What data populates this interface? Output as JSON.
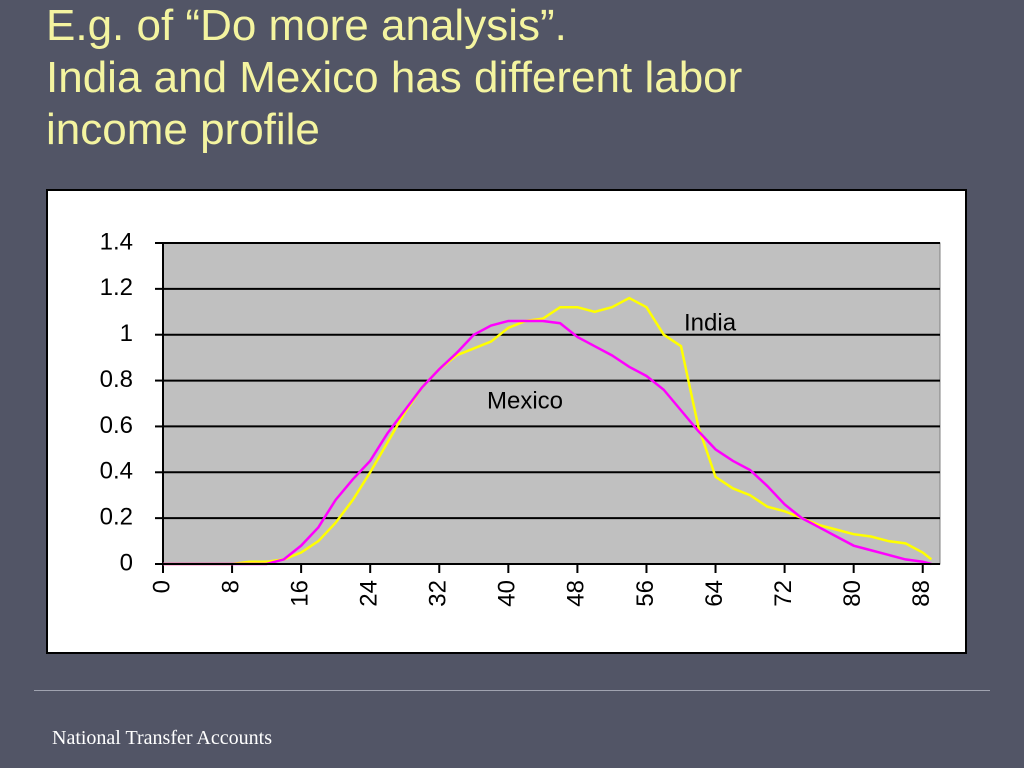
{
  "slide": {
    "title_lines": [
      "E.g. of “Do more analysis”.",
      "India and Mexico has different labor",
      "income profile"
    ],
    "footer": "National Transfer Accounts"
  },
  "chart_data": {
    "type": "line",
    "x": [
      0,
      2,
      4,
      6,
      8,
      10,
      12,
      14,
      16,
      18,
      20,
      22,
      24,
      26,
      28,
      30,
      32,
      34,
      36,
      38,
      40,
      42,
      44,
      46,
      48,
      50,
      52,
      54,
      56,
      58,
      60,
      62,
      64,
      66,
      68,
      70,
      72,
      74,
      76,
      78,
      80,
      82,
      84,
      86,
      88,
      89
    ],
    "series": [
      {
        "name": "India",
        "color": "#ffff00",
        "values": [
          0,
          0,
          0,
          0,
          0,
          0.01,
          0.01,
          0.02,
          0.05,
          0.1,
          0.18,
          0.28,
          0.4,
          0.53,
          0.66,
          0.77,
          0.85,
          0.91,
          0.94,
          0.97,
          1.03,
          1.06,
          1.07,
          1.12,
          1.12,
          1.1,
          1.12,
          1.16,
          1.12,
          1.0,
          0.95,
          0.6,
          0.38,
          0.33,
          0.3,
          0.25,
          0.23,
          0.2,
          0.17,
          0.15,
          0.13,
          0.12,
          0.1,
          0.09,
          0.05,
          0.02
        ]
      },
      {
        "name": "Mexico",
        "color": "#ff00ff",
        "values": [
          0,
          0,
          0,
          0,
          0,
          0,
          0,
          0.02,
          0.08,
          0.16,
          0.28,
          0.37,
          0.45,
          0.57,
          0.67,
          0.77,
          0.85,
          0.92,
          1.0,
          1.04,
          1.06,
          1.06,
          1.06,
          1.05,
          0.99,
          0.95,
          0.91,
          0.86,
          0.82,
          0.76,
          0.67,
          0.58,
          0.5,
          0.45,
          0.41,
          0.34,
          0.26,
          0.2,
          0.16,
          0.12,
          0.08,
          0.06,
          0.04,
          0.02,
          0.01,
          0
        ]
      }
    ],
    "xlim": [
      0,
      90
    ],
    "xticks": [
      0,
      8,
      16,
      24,
      32,
      40,
      48,
      56,
      64,
      72,
      80,
      88
    ],
    "ylim": [
      0,
      1.4
    ],
    "yticks": [
      0,
      0.2,
      0.4,
      0.6,
      0.8,
      1,
      1.2,
      1.4
    ],
    "grid": true,
    "plot_color": "#c0c0c0"
  }
}
